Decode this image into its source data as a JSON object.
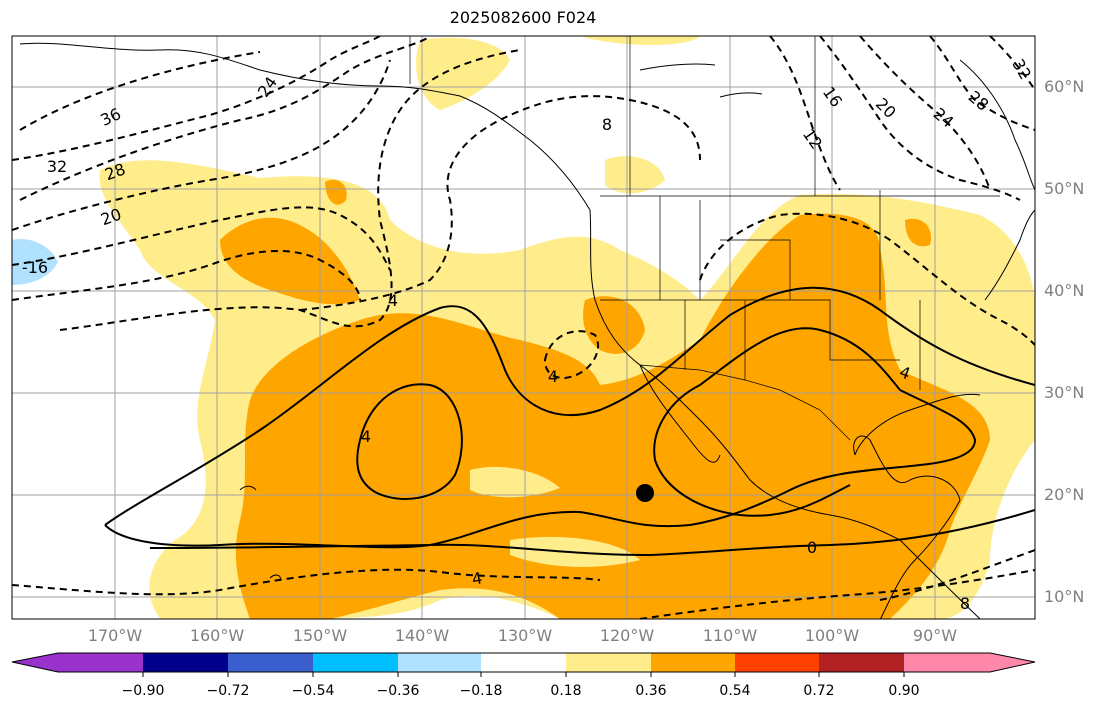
{
  "title": "2025082600 F024",
  "lat_labels": [
    "60°N",
    "50°N",
    "40°N",
    "30°N",
    "20°N",
    "10°N"
  ],
  "lon_labels": [
    "170°W",
    "160°W",
    "150°W",
    "140°W",
    "130°W",
    "120°W",
    "110°W",
    "100°W",
    "90°W"
  ],
  "colorbar": {
    "ticks": [
      "−0.90",
      "−0.72",
      "−0.54",
      "−0.36",
      "−0.18",
      "0.18",
      "0.36",
      "0.54",
      "0.72",
      "0.90"
    ],
    "colors": [
      "#9932CC",
      "#00008B",
      "#3A5FCD",
      "#00BFFF",
      "#B0E2FF",
      "#FFFFFF",
      "#FFEC8B",
      "#FFA500",
      "#FF4000",
      "#B22222",
      "#FF88AA"
    ]
  },
  "contour_labels": {
    "c36": "36",
    "c24": "24",
    "c32": "32",
    "c28": "28",
    "c20": "20",
    "c16m": "-16",
    "c8": "8",
    "c16": "16",
    "c12": "12",
    "c20e": "20",
    "c24e": "24",
    "c28e": "28",
    "c32e": "32",
    "c4a": "4",
    "c4b": "4",
    "c4c": "4",
    "c4d": "4",
    "c0": "0",
    "c4e": "4",
    "c8s": "8"
  },
  "colors": {
    "yellow": "#FFEC8B",
    "orange": "#FFA500",
    "lightblue": "#B0E2FF",
    "grid": "#A0A0A0"
  }
}
